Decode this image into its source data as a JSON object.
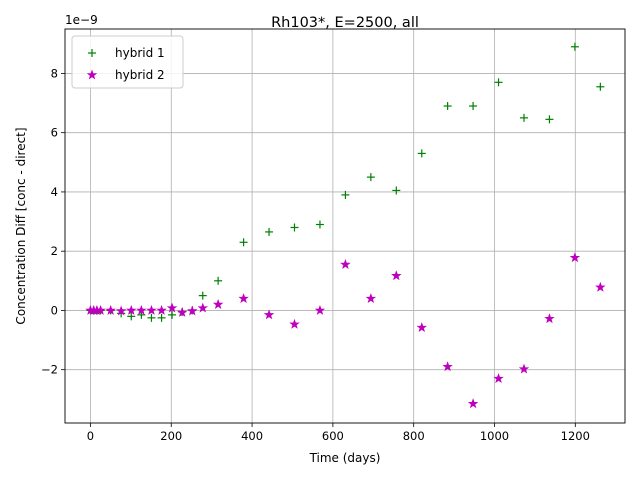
{
  "chart_data": {
    "type": "scatter",
    "title": "Rh103*, E=2500, all",
    "xlabel": "Time (days)",
    "ylabel": "Concentration Diff [conc - direct]",
    "y_offset_label": "1e−9",
    "xlim": [
      -63,
      1323
    ],
    "ylim": [
      -3.8,
      9.5
    ],
    "xticks": [
      0,
      200,
      400,
      600,
      800,
      1000,
      1200
    ],
    "yticks": [
      -2,
      0,
      2,
      4,
      6,
      8
    ],
    "xtick_labels": [
      "0",
      "200",
      "400",
      "600",
      "800",
      "1000",
      "1200"
    ],
    "ytick_labels": [
      "−2",
      "0",
      "2",
      "4",
      "6",
      "8"
    ],
    "grid": true,
    "legend_position": "upper-left",
    "series": [
      {
        "name": "hybrid 1",
        "marker": "plus",
        "color": "#008000",
        "points": [
          [
            0,
            0.0
          ],
          [
            8,
            0.0
          ],
          [
            16,
            0.0
          ],
          [
            25,
            0.0
          ],
          [
            50,
            0.0
          ],
          [
            76,
            -0.1
          ],
          [
            101,
            -0.2
          ],
          [
            126,
            -0.15
          ],
          [
            151,
            -0.25
          ],
          [
            176,
            -0.25
          ],
          [
            202,
            -0.15
          ],
          [
            227,
            -0.05
          ],
          [
            252,
            0.0
          ],
          [
            278,
            0.5
          ],
          [
            316,
            1.0
          ],
          [
            379,
            2.3
          ],
          [
            442,
            2.65
          ],
          [
            505,
            2.8
          ],
          [
            568,
            2.9
          ],
          [
            631,
            3.9
          ],
          [
            694,
            4.5
          ],
          [
            757,
            4.05
          ],
          [
            820,
            5.3
          ],
          [
            884,
            6.9
          ],
          [
            947,
            6.9
          ],
          [
            1010,
            7.7
          ],
          [
            1073,
            6.5
          ],
          [
            1136,
            6.45
          ],
          [
            1199,
            8.9
          ],
          [
            1262,
            7.55
          ]
        ]
      },
      {
        "name": "hybrid 2",
        "marker": "star",
        "color": "#bf00bf",
        "points": [
          [
            0,
            0.0
          ],
          [
            8,
            0.0
          ],
          [
            16,
            0.0
          ],
          [
            25,
            0.0
          ],
          [
            50,
            0.0
          ],
          [
            76,
            -0.02
          ],
          [
            101,
            0.0
          ],
          [
            126,
            0.0
          ],
          [
            151,
            0.0
          ],
          [
            176,
            0.0
          ],
          [
            202,
            0.08
          ],
          [
            227,
            -0.07
          ],
          [
            252,
            -0.02
          ],
          [
            278,
            0.08
          ],
          [
            316,
            0.2
          ],
          [
            379,
            0.4
          ],
          [
            442,
            -0.15
          ],
          [
            505,
            -0.47
          ],
          [
            568,
            0.0
          ],
          [
            631,
            1.55
          ],
          [
            694,
            0.4
          ],
          [
            757,
            1.17
          ],
          [
            820,
            -0.58
          ],
          [
            884,
            -1.9
          ],
          [
            947,
            -3.15
          ],
          [
            1010,
            -2.3
          ],
          [
            1073,
            -1.98
          ],
          [
            1136,
            -0.28
          ],
          [
            1199,
            1.78
          ],
          [
            1262,
            0.78
          ]
        ]
      }
    ]
  }
}
